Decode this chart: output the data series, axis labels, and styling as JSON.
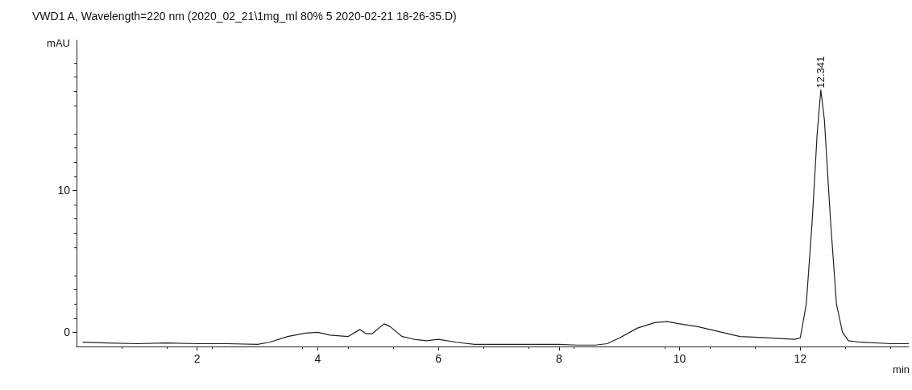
{
  "chart_data": {
    "type": "line",
    "title": "VWD1 A, Wavelength=220 nm (2020_02_21\\1mg_ml 80% 5 2020-02-21 18-26-35.D)",
    "xlabel": "min",
    "ylabel": "mAU",
    "x": [
      0.1,
      0.5,
      1,
      1.5,
      2,
      2.5,
      3,
      3.2,
      3.5,
      3.8,
      4,
      4.2,
      4.5,
      4.7,
      4.8,
      4.9,
      5.1,
      5.2,
      5.4,
      5.6,
      5.8,
      6,
      6.3,
      6.6,
      7,
      7.5,
      8,
      8.3,
      8.6,
      8.8,
      9,
      9.3,
      9.6,
      9.8,
      10,
      10.3,
      10.6,
      11,
      11.5,
      11.9,
      12,
      12.1,
      12.2,
      12.28,
      12.341,
      12.4,
      12.5,
      12.6,
      12.7,
      12.8,
      13,
      13.5,
      13.8
    ],
    "series": [
      {
        "color": "#222222",
        "values": [
          -0.7,
          -0.75,
          -0.8,
          -0.75,
          -0.8,
          -0.8,
          -0.85,
          -0.7,
          -0.3,
          -0.05,
          0,
          -0.2,
          -0.3,
          0.2,
          -0.1,
          -0.1,
          0.6,
          0.4,
          -0.3,
          -0.5,
          -0.6,
          -0.5,
          -0.7,
          -0.85,
          -0.85,
          -0.85,
          -0.85,
          -0.9,
          -0.9,
          -0.8,
          -0.4,
          0.3,
          0.7,
          0.75,
          0.6,
          0.4,
          0.1,
          -0.3,
          -0.4,
          -0.5,
          -0.4,
          2,
          8,
          14,
          17.1,
          15,
          8,
          2,
          0,
          -0.6,
          -0.7,
          -0.8,
          -0.8
        ]
      }
    ],
    "xlim": [
      0,
      13.8
    ],
    "ylim": [
      -1,
      20.6
    ],
    "xticks": [
      2,
      4,
      6,
      8,
      10,
      12
    ],
    "yticks": [
      0,
      10
    ],
    "annotations": [
      {
        "text": "12.341",
        "x": 12.341,
        "y": 17.1
      }
    ],
    "grid": false,
    "marker": "none",
    "line_style": "solid"
  }
}
